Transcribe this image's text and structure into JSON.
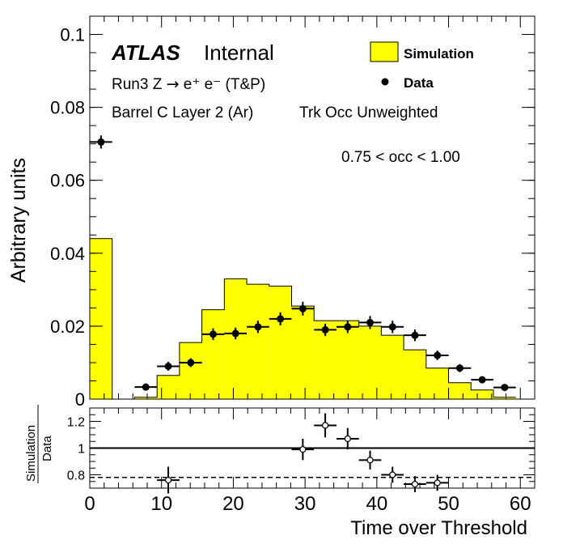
{
  "chart_data": [
    {
      "type": "histogram",
      "ylabel": "Arbitrary units",
      "xlim": [
        0,
        62
      ],
      "ylim": [
        0,
        0.105
      ],
      "y_ticks": [
        "0",
        "0.02",
        "0.04",
        "0.06",
        "0.08",
        "0.1"
      ],
      "legend_position": "top-right",
      "annotations": {
        "atlas": "ATLAS",
        "status": "Internal",
        "process_prefix": "Run3 Z ",
        "process_arrow": "→",
        "process_suffix": " e⁺ e⁻ (T&P)",
        "region": "Barrel C Layer 2 (Ar)",
        "weighting": "Trk Occ Unweighted",
        "selection": "0.75 < occ < 1.00"
      },
      "series": [
        {
          "name": "Simulation",
          "style": "filled-histogram",
          "color": "#ffff00",
          "bin_edges": [
            0,
            3.125,
            6.25,
            9.375,
            12.5,
            15.625,
            18.75,
            21.875,
            25,
            28.125,
            31.25,
            34.375,
            37.5,
            40.625,
            43.75,
            46.875,
            50,
            53.125,
            56.25,
            59.375
          ],
          "values": [
            0.044,
            0,
            0.0005,
            0.0065,
            0.0155,
            0.0245,
            0.033,
            0.0315,
            0.031,
            0.0255,
            0.0215,
            0.0215,
            0.02,
            0.0175,
            0.0135,
            0.0085,
            0.0045,
            0.0025,
            0.0005
          ]
        },
        {
          "name": "Data",
          "style": "points-with-error-bars",
          "color": "#000000",
          "x": [
            1.5625,
            7.8125,
            10.9375,
            14.0625,
            17.1875,
            20.3125,
            23.4375,
            26.5625,
            29.6875,
            32.8125,
            35.9375,
            39.0625,
            42.1875,
            45.3125,
            48.4375,
            51.5625,
            54.6875,
            57.8125
          ],
          "y": [
            0.0705,
            0.0033,
            0.009,
            0.01,
            0.0178,
            0.018,
            0.0198,
            0.022,
            0.0248,
            0.019,
            0.0198,
            0.021,
            0.0198,
            0.0175,
            0.012,
            0.0085,
            0.0053,
            0.0032
          ],
          "yerr": [
            0.0018,
            0.0006,
            0.0012,
            0.0012,
            0.0016,
            0.0016,
            0.0017,
            0.0018,
            0.0019,
            0.0017,
            0.0017,
            0.0018,
            0.0017,
            0.0016,
            0.0013,
            0.0011,
            0.0009,
            0.0007
          ]
        }
      ]
    },
    {
      "type": "scatter",
      "xlabel": "Time over Threshold",
      "ylabel": "Simulation / Data",
      "ylabel_numerator": "Simulation",
      "ylabel_denominator": "Data",
      "xlim": [
        0,
        62
      ],
      "ylim": [
        0.7,
        1.3
      ],
      "x_ticks": [
        "0",
        "10",
        "20",
        "30",
        "40",
        "50",
        "60"
      ],
      "y_ticks": [
        "0.8",
        "1",
        "1.2"
      ],
      "reference_lines": [
        {
          "y": 1.0,
          "style": "solid"
        },
        {
          "y": 0.78,
          "style": "dashed"
        }
      ],
      "series": [
        {
          "name": "Simulation/Data",
          "style": "open-points-with-error-bars",
          "x": [
            10.9375,
            29.6875,
            32.8125,
            35.9375,
            39.0625,
            42.1875,
            45.3125,
            48.4375
          ],
          "y": [
            0.76,
            0.99,
            1.17,
            1.07,
            0.91,
            0.8,
            0.73,
            0.74
          ],
          "yerr": [
            0.1,
            0.08,
            0.09,
            0.08,
            0.07,
            0.06,
            0.06,
            0.06
          ]
        }
      ]
    }
  ]
}
